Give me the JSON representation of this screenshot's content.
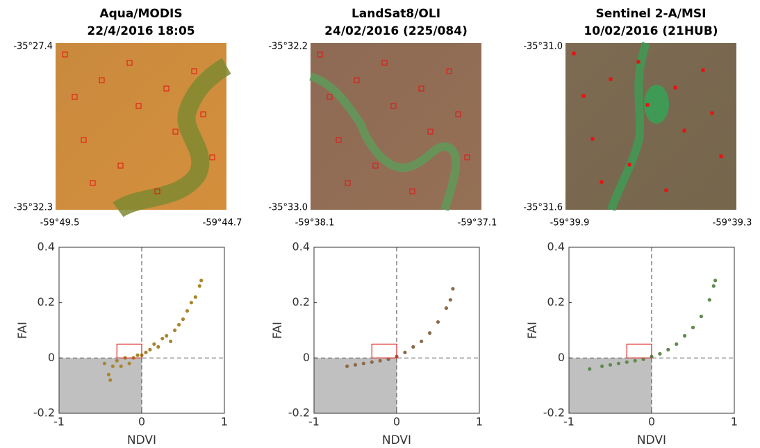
{
  "images": [
    {
      "title": [
        "Aqua/MODIS",
        "22/4/2016 18:05"
      ],
      "lat_top": "-35°27.4",
      "lat_bottom": "-35°32.3",
      "lon_left": "-59°49.5",
      "lon_right": "-59°44.7"
    },
    {
      "title": [
        "LandSat8/OLI",
        "24/02/2016 (225/084)"
      ],
      "lat_top": "-35°32.2",
      "lat_bottom": "-35°33.0",
      "lon_left": "-59°38.1",
      "lon_right": "-59°37.1"
    },
    {
      "title": [
        "Sentinel 2-A/MSI",
        "10/02/2016 (21HUB)"
      ],
      "lat_top": "-35°31.0",
      "lat_bottom": "-35°31.6",
      "lon_left": "-59°39.9",
      "lon_right": "-59°39.3"
    }
  ],
  "chart_data": [
    {
      "type": "scatter",
      "x_label": "NDVI",
      "y_label": "FAI",
      "color": "#a8862e",
      "x": [
        -0.45,
        -0.4,
        -0.38,
        -0.35,
        -0.3,
        -0.25,
        -0.2,
        -0.15,
        -0.1,
        -0.05,
        0,
        0.05,
        0.1,
        0.15,
        0.2,
        0.25,
        0.3,
        0.35,
        0.4,
        0.45,
        0.5,
        0.55,
        0.6,
        0.65,
        0.7,
        0.72
      ],
      "values": [
        -0.02,
        -0.06,
        -0.08,
        -0.03,
        -0.01,
        -0.03,
        0.0,
        -0.02,
        0.0,
        0.01,
        0.01,
        0.02,
        0.03,
        0.05,
        0.04,
        0.07,
        0.08,
        0.06,
        0.1,
        0.12,
        0.14,
        0.17,
        0.2,
        0.22,
        0.26,
        0.28
      ],
      "xlim": [
        -1,
        1
      ],
      "ylim": [
        -0.2,
        0.4
      ],
      "xticks": [
        -1,
        0,
        1
      ],
      "yticks": [
        -0.2,
        0,
        0.2,
        0.4
      ],
      "shaded_region": {
        "x": [
          -1,
          0
        ],
        "y": [
          -0.2,
          0
        ]
      },
      "highlight_box": {
        "x": [
          -0.3,
          0
        ],
        "y": [
          0,
          0.05
        ]
      }
    },
    {
      "type": "scatter",
      "x_label": "NDVI",
      "y_label": "FAI",
      "color": "#8c6a4a",
      "x": [
        -0.6,
        -0.5,
        -0.4,
        -0.3,
        -0.2,
        -0.1,
        0,
        0.1,
        0.2,
        0.3,
        0.4,
        0.5,
        0.6,
        0.65,
        0.68
      ],
      "values": [
        -0.03,
        -0.025,
        -0.02,
        -0.015,
        -0.01,
        -0.005,
        0.005,
        0.02,
        0.04,
        0.06,
        0.09,
        0.13,
        0.18,
        0.21,
        0.25
      ],
      "xlim": [
        -1,
        1
      ],
      "ylim": [
        -0.2,
        0.4
      ],
      "xticks": [
        -1,
        0,
        1
      ],
      "yticks": [
        -0.2,
        0,
        0.2,
        0.4
      ],
      "shaded_region": {
        "x": [
          -1,
          0
        ],
        "y": [
          -0.2,
          0
        ]
      },
      "highlight_box": {
        "x": [
          -0.3,
          0
        ],
        "y": [
          0,
          0.05
        ]
      }
    },
    {
      "type": "scatter",
      "x_label": "NDVI",
      "y_label": "FAI",
      "color": "#5e8a4e",
      "x": [
        -0.75,
        -0.6,
        -0.5,
        -0.4,
        -0.3,
        -0.2,
        -0.1,
        0,
        0.1,
        0.2,
        0.3,
        0.4,
        0.5,
        0.6,
        0.7,
        0.75,
        0.77
      ],
      "values": [
        -0.04,
        -0.03,
        -0.025,
        -0.02,
        -0.015,
        -0.01,
        -0.005,
        0.005,
        0.015,
        0.03,
        0.05,
        0.08,
        0.11,
        0.15,
        0.21,
        0.26,
        0.28
      ],
      "xlim": [
        -1,
        1
      ],
      "ylim": [
        -0.2,
        0.4
      ],
      "xticks": [
        -1,
        0,
        1
      ],
      "yticks": [
        -0.2,
        0,
        0.2,
        0.4
      ],
      "shaded_region": {
        "x": [
          -1,
          0
        ],
        "y": [
          -0.2,
          0
        ]
      },
      "highlight_box": {
        "x": [
          -0.3,
          0
        ],
        "y": [
          0,
          0.05
        ]
      }
    }
  ]
}
